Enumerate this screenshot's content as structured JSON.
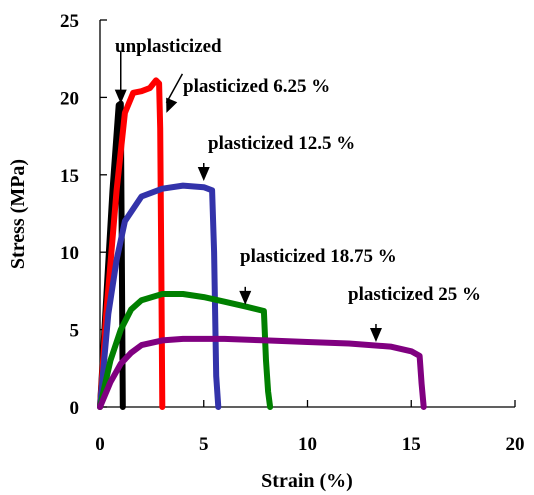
{
  "chart_data": {
    "type": "line",
    "title": "",
    "xlabel": "Strain (%)",
    "ylabel": "Stress (MPa)",
    "xlim": [
      0,
      20
    ],
    "ylim": [
      0,
      25
    ],
    "xticks": [
      0,
      5,
      10,
      15,
      20
    ],
    "yticks": [
      0,
      5,
      10,
      15,
      20,
      25
    ],
    "grid": false,
    "series": [
      {
        "name": "unplasticized",
        "color": "#000000",
        "x": [
          0,
          0.3,
          0.6,
          0.9,
          1.0,
          1.05,
          1.1
        ],
        "y": [
          0,
          7,
          14,
          19.5,
          19.6,
          10,
          0
        ]
      },
      {
        "name": "plasticized 6.25 %",
        "color": "#ff0000",
        "x": [
          0,
          0.3,
          0.8,
          1.2,
          1.6,
          2.0,
          2.4,
          2.7,
          2.85,
          2.9,
          2.95,
          3.0
        ],
        "y": [
          0,
          6,
          14,
          19,
          20.3,
          20.4,
          20.6,
          21.1,
          20.9,
          18,
          10,
          0
        ]
      },
      {
        "name": "plasticized 12.5 %",
        "color": "#3333aa",
        "x": [
          0,
          0.4,
          0.8,
          1.2,
          2.0,
          3.0,
          4.0,
          5.0,
          5.4,
          5.5,
          5.6,
          5.7
        ],
        "y": [
          0,
          6,
          9.5,
          12,
          13.6,
          14.1,
          14.3,
          14.2,
          14.0,
          10,
          2,
          0
        ]
      },
      {
        "name": "plasticized 18.75 %",
        "color": "#008000",
        "x": [
          0,
          0.5,
          1.0,
          1.5,
          2.0,
          3.0,
          4.0,
          5.0,
          6.0,
          7.0,
          7.9,
          8.0,
          8.1,
          8.2
        ],
        "y": [
          0,
          3,
          5,
          6.3,
          6.9,
          7.3,
          7.3,
          7.1,
          6.8,
          6.5,
          6.2,
          3,
          1,
          0
        ]
      },
      {
        "name": "plasticized 25 %",
        "color": "#800080",
        "x": [
          0,
          0.5,
          1.0,
          1.5,
          2.0,
          3.0,
          4.0,
          6.0,
          8.0,
          10.0,
          12.0,
          14.0,
          15.0,
          15.4,
          15.5,
          15.6
        ],
        "y": [
          0,
          1.6,
          2.8,
          3.5,
          4.0,
          4.3,
          4.4,
          4.4,
          4.3,
          4.2,
          4.1,
          3.9,
          3.6,
          3.3,
          1.5,
          0
        ]
      }
    ],
    "annotations": [
      {
        "text": "unplasticized",
        "series": 0,
        "arrow_x": 1.0,
        "arrow_y": 19.6
      },
      {
        "text": "plasticized 6.25 %",
        "series": 1,
        "arrow_x": 3.2,
        "arrow_y": 19.0
      },
      {
        "text": "plasticized 12.5 %",
        "series": 2,
        "arrow_x": 5.0,
        "arrow_y": 14.6
      },
      {
        "text": "plasticized 18.75 %",
        "series": 3,
        "arrow_x": 7.0,
        "arrow_y": 6.6
      },
      {
        "text": "plasticized 25 %",
        "series": 4,
        "arrow_x": 13.3,
        "arrow_y": 4.2
      }
    ]
  }
}
